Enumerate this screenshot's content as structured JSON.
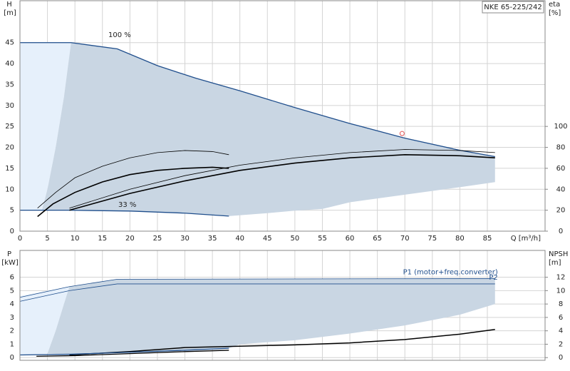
{
  "chart_data": [
    {
      "type": "line",
      "model": "NKE 65-225/242",
      "y_label": "H",
      "y_unit": "[m]",
      "y2_label": "eta",
      "y2_unit": "[%]",
      "x_label": "Q [m³/h]",
      "annotations": [
        "100 %",
        "33 %"
      ],
      "xlim": [
        0,
        95.5
      ],
      "xticks": [
        0,
        5,
        10,
        15,
        20,
        25,
        30,
        35,
        40,
        45,
        50,
        55,
        60,
        65,
        70,
        75,
        80,
        85
      ],
      "ylim": [
        0,
        55
      ],
      "yticks": [
        0,
        5,
        10,
        15,
        20,
        25,
        30,
        35,
        40,
        45
      ],
      "y2lim": [
        0,
        220
      ],
      "y2ticks": [
        0,
        20,
        40,
        60,
        80,
        100
      ],
      "grid": true,
      "light_region": {
        "color": "#e6f0fb",
        "x": [
          0,
          0,
          9.3,
          8,
          6.5,
          5,
          4
        ],
        "values": [
          5,
          45,
          45,
          32,
          20,
          10,
          5
        ]
      },
      "region": {
        "color": "#c9d6e3",
        "x": [
          4,
          5,
          6.5,
          8,
          9.3,
          17.7,
          25,
          32,
          40,
          50,
          60,
          70,
          80,
          86.4,
          86.4,
          80,
          70,
          60,
          55,
          50,
          45,
          38,
          30,
          20,
          9
        ],
        "values": [
          5,
          10,
          20,
          32,
          45,
          43.5,
          39.5,
          36.5,
          33.5,
          29.5,
          25.7,
          22.2,
          19.3,
          17.8,
          11.7,
          10.5,
          8.7,
          6.9,
          5.3,
          4.9,
          4.3,
          3.6,
          4.3,
          4.8,
          5
        ]
      },
      "series": [
        {
          "color": "#1f4e8c",
          "x": [
            0,
            9.3,
            17.7,
            25,
            32,
            40,
            50,
            60,
            70,
            80,
            86.4
          ],
          "values": [
            45,
            45,
            43.5,
            39.5,
            36.5,
            33.5,
            29.5,
            25.7,
            22.2,
            19.3,
            17.8
          ]
        },
        {
          "color": "#1f4e8c",
          "x": [
            0,
            9,
            20,
            30,
            38
          ],
          "values": [
            5,
            5,
            4.8,
            4.3,
            3.6
          ]
        },
        {
          "color": "#000000",
          "axis": "y2",
          "x": [
            3.2,
            6.5,
            10,
            15,
            20,
            25,
            30,
            35,
            38
          ],
          "values": [
            22,
            37,
            51,
            62,
            70,
            75,
            77,
            76,
            73
          ]
        },
        {
          "color": "#000000",
          "axis": "y2",
          "x": [
            3.2,
            6,
            10,
            15,
            20,
            25,
            30,
            35,
            38
          ],
          "values": [
            14,
            26,
            37,
            47,
            54,
            58,
            60,
            61,
            60
          ]
        },
        {
          "color": "#000000",
          "axis": "y2",
          "x": [
            9,
            20,
            30,
            40,
            50,
            60,
            70,
            80,
            86.4
          ],
          "values": [
            22,
            40,
            53,
            63,
            70,
            75,
            78,
            77,
            75
          ]
        },
        {
          "color": "#000000",
          "axis": "y2",
          "x": [
            9,
            20,
            30,
            40,
            50,
            60,
            70,
            80,
            86.4
          ],
          "values": [
            20,
            36,
            48,
            58,
            65,
            70,
            73,
            72,
            70
          ]
        }
      ],
      "duty_point": {
        "color": "#e05050",
        "x": 69.5,
        "y": 23.3
      }
    },
    {
      "type": "line",
      "y_label": "P",
      "y_unit": "[kW]",
      "y2_label": "NPSH",
      "y2_unit": "[m]",
      "xlim": [
        0,
        95.5
      ],
      "xticks": [
        0,
        5,
        10,
        15,
        20,
        25,
        30,
        35,
        40,
        45,
        50,
        55,
        60,
        65,
        70,
        75,
        80,
        85
      ],
      "show_xtick_labels": false,
      "ylim": [
        -0.2,
        8.0
      ],
      "yticks": [
        0,
        1,
        2,
        3,
        4,
        5,
        6
      ],
      "y2lim": [
        -0.4,
        16
      ],
      "y2ticks": [
        0,
        2,
        4,
        6,
        8,
        10,
        12
      ],
      "grid": true,
      "light_region": {
        "color": "#e6f0fb",
        "x": [
          0,
          0,
          9,
          8,
          6.5,
          5
        ],
        "values": [
          0.2,
          4.6,
          5.3,
          4,
          2,
          0.3
        ]
      },
      "region": {
        "color": "#c9d6e3",
        "x": [
          5,
          6.5,
          8,
          9,
          17.7,
          86.4,
          86.4,
          80,
          70,
          60,
          50,
          40,
          38,
          30,
          20,
          9
        ],
        "values": [
          0.3,
          2,
          4,
          5.3,
          5.85,
          5.9,
          4.0,
          3.2,
          2.4,
          1.8,
          1.3,
          1.0,
          0.7,
          0.55,
          0.4,
          0.25
        ]
      },
      "series": [
        {
          "name": "P1 (motor+freq.converter)",
          "color": "#1f4e8c",
          "x": [
            0,
            9,
            17.7,
            86.4
          ],
          "values": [
            4.5,
            5.3,
            5.85,
            5.9
          ]
        },
        {
          "name": "P2",
          "color": "#1f4e8c",
          "x": [
            0,
            9,
            17.7,
            86.4
          ],
          "values": [
            4.2,
            5.0,
            5.5,
            5.5
          ]
        },
        {
          "color": "#000000",
          "axis": "y2",
          "x": [
            9,
            20,
            30,
            40,
            50,
            60,
            70,
            80,
            86.4
          ],
          "values": [
            0.4,
            0.9,
            1.5,
            1.7,
            1.9,
            2.2,
            2.7,
            3.5,
            4.2
          ]
        },
        {
          "color": "#1f4e8c",
          "x": [
            0,
            9,
            20,
            30,
            38
          ],
          "values": [
            0.2,
            0.25,
            0.4,
            0.55,
            0.7
          ]
        },
        {
          "color": "#000000",
          "x": [
            3,
            10,
            20,
            30,
            38
          ],
          "values": [
            0.1,
            0.15,
            0.3,
            0.45,
            0.55
          ]
        }
      ]
    }
  ]
}
